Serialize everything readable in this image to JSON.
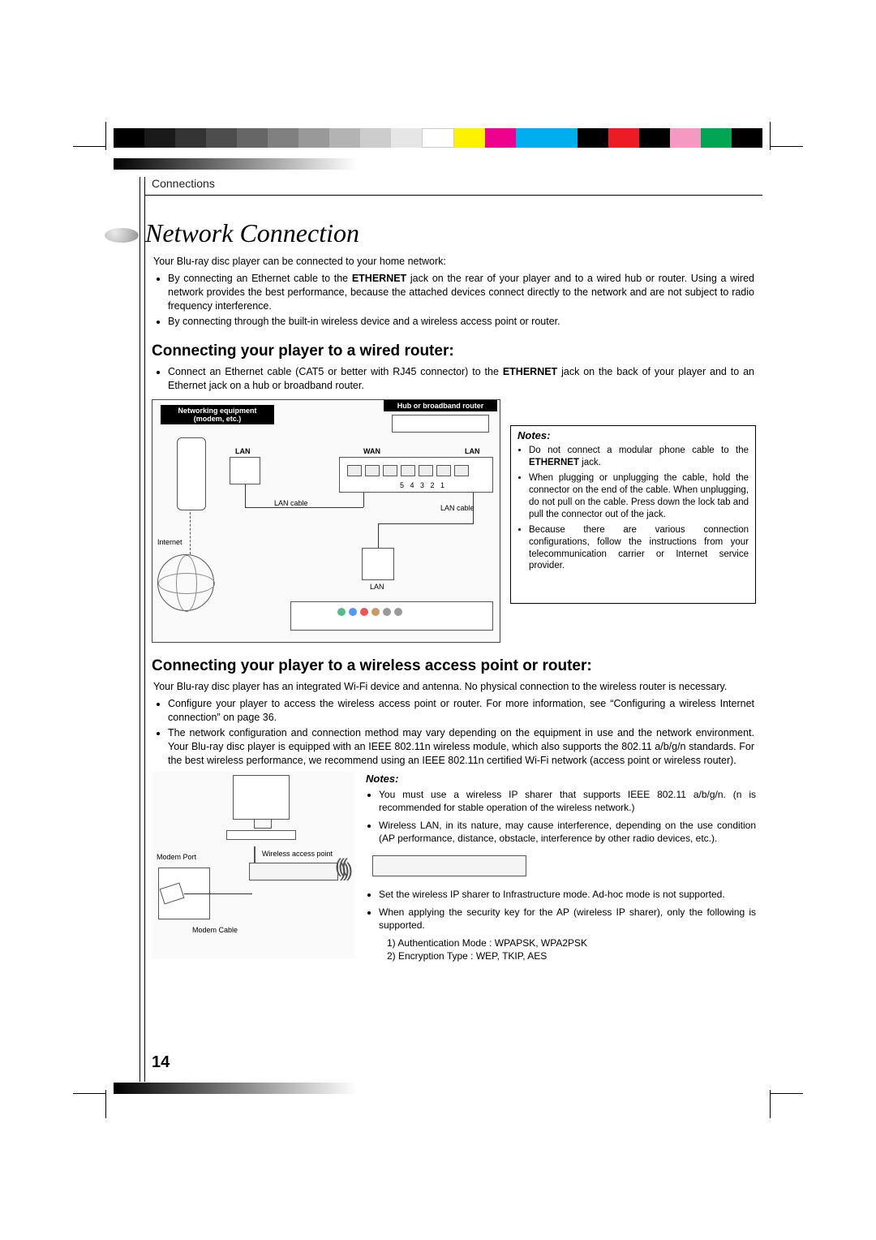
{
  "color_bar": [
    "#000000",
    "#1a1a1a",
    "#333333",
    "#4d4d4d",
    "#666666",
    "#808080",
    "#999999",
    "#b3b3b3",
    "#cccccc",
    "#e6e6e6",
    "#ffffff",
    "#fff200",
    "#ec008c",
    "#00aeef",
    "#00aeef",
    "#000000",
    "#ed1c24",
    "#000000",
    "#f499c1",
    "#00a651",
    "#000000"
  ],
  "gradient": {
    "from": "#000000",
    "to": "#ffffff"
  },
  "breadcrumb": "Connections",
  "section_title": "Network Connection",
  "intro": "Your Blu-ray disc player can be connected to your home network:",
  "intro_bullets": [
    "By connecting an Ethernet cable to the ETHERNET jack on the rear of your player and to a wired hub or router. Using a wired network provides the best performance, because the attached devices connect directly to the network and are not subject to radio frequency interference.",
    "By connecting through the built-in wireless device and a wireless access point or router."
  ],
  "wired": {
    "heading": "Connecting your player to a wired router:",
    "bullets": [
      "Connect an Ethernet cable (CAT5 or better with RJ45 connector) to the ETHERNET jack on the back of your player and to an Ethernet jack on a hub or broadband router."
    ],
    "labels": {
      "net_equip": "Networking equipment (modem, etc.)",
      "hub": "Hub or broadband router",
      "lan": "LAN",
      "wan": "WAN",
      "lan_cable": "LAN cable",
      "internet": "Internet"
    },
    "notes": {
      "title": "Notes:",
      "items": [
        "Do not connect a modular phone cable to the ETHERNET jack.",
        "When plugging or unplugging the cable, hold the connector on the end of the cable. When unplugging, do not pull on the cable. Press down the lock tab and pull the connector out of the jack.",
        "Because there are various connection configurations, follow the instructions from your telecommunication carrier or Internet service provider."
      ]
    }
  },
  "wireless": {
    "heading": "Connecting your player to a wireless access point or router:",
    "intro": "Your Blu-ray disc player has an integrated Wi-Fi device and antenna. No physical connection to the wireless router is necessary.",
    "bullets": [
      "Configure your player to access the wireless access point or router. For more information, see “Configuring a wireless Internet connection” on page 36.",
      "The network configuration and connection method may vary depending on the equipment in use and the network environment. Your Blu-ray disc player is equipped with an IEEE 802.11n wireless module, which also supports the 802.11 a/b/g/n standards. For the best wireless performance, we recommend using an IEEE 802.11n certified Wi-Fi network (access point or wireless router)."
    ],
    "labels": {
      "modem_port": "Modem Port",
      "modem_cable": "Modem Cable",
      "wap": "Wireless access point"
    },
    "notes": {
      "title": "Notes:",
      "items_top": [
        "You must use a wireless IP sharer that supports IEEE 802.11 a/b/g/n. (n is recommended for stable operation of the wireless network.)",
        "Wireless LAN, in its nature, may cause interference, depending on the use condition (AP performance, distance, obstacle, interference by other radio devices, etc.)."
      ],
      "items_bottom": [
        "Set the wireless IP sharer to Infrastructure mode. Ad-hoc mode is not supported.",
        "When applying the security key for the AP (wireless IP sharer), only the following is supported."
      ],
      "sub": [
        "1) Authentication Mode : WPAPSK, WPA2PSK",
        "2) Encryption Type : WEP, TKIP, AES"
      ]
    }
  },
  "page_number": "14"
}
